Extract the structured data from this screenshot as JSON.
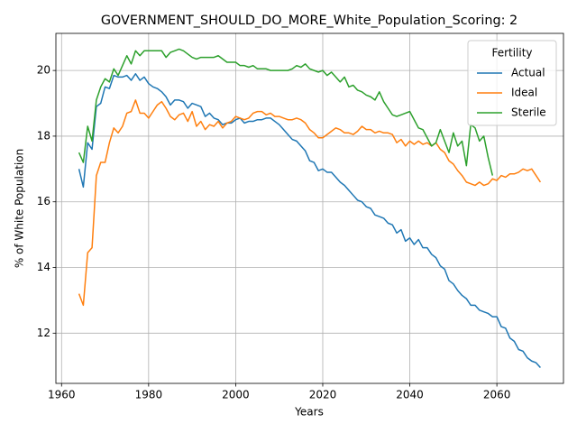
{
  "chart_data": {
    "type": "line",
    "title": "GOVERNMENT_SHOULD_DO_MORE_White_Population_Scoring: 2",
    "xlabel": "Years",
    "ylabel": "% of White Population",
    "legend_title": "Fertility",
    "legend": "upper right",
    "grid": true,
    "xlim": [
      1958.7,
      2075.3
    ],
    "ylim": [
      10.47,
      21.13
    ],
    "xticks": [
      1960,
      1980,
      2000,
      2020,
      2040,
      2060
    ],
    "yticks": [
      12,
      14,
      16,
      18,
      20
    ],
    "x": [
      1964,
      1965,
      1966,
      1967,
      1968,
      1969,
      1970,
      1971,
      1972,
      1973,
      1974,
      1975,
      1976,
      1977,
      1978,
      1979,
      1980,
      1981,
      1982,
      1983,
      1984,
      1985,
      1986,
      1987,
      1988,
      1989,
      1990,
      1991,
      1992,
      1993,
      1994,
      1995,
      1996,
      1997,
      1998,
      1999,
      2000,
      2001,
      2002,
      2003,
      2004,
      2005,
      2006,
      2007,
      2008,
      2009,
      2010,
      2011,
      2012,
      2013,
      2014,
      2015,
      2016,
      2017,
      2018,
      2019,
      2020,
      2021,
      2022,
      2023,
      2024,
      2025,
      2026,
      2027,
      2028,
      2029,
      2030,
      2031,
      2032,
      2033,
      2034,
      2035,
      2036,
      2037,
      2038,
      2039,
      2040,
      2041,
      2042,
      2043,
      2044,
      2045,
      2046,
      2047,
      2048,
      2049,
      2050,
      2051,
      2052,
      2053,
      2054,
      2055,
      2056,
      2057,
      2058,
      2059,
      2060,
      2061,
      2062,
      2063,
      2064,
      2065,
      2066,
      2067,
      2068,
      2069,
      2070
    ],
    "series": [
      {
        "name": "Actual",
        "color": "#1f77b4",
        "values": [
          17.0,
          16.45,
          17.8,
          17.6,
          18.9,
          19.0,
          19.5,
          19.45,
          19.85,
          19.8,
          19.8,
          19.85,
          19.7,
          19.9,
          19.7,
          19.8,
          19.6,
          19.5,
          19.45,
          19.35,
          19.2,
          18.95,
          19.1,
          19.1,
          19.05,
          18.85,
          19.0,
          18.95,
          18.9,
          18.6,
          18.7,
          18.55,
          18.5,
          18.35,
          18.4,
          18.4,
          18.5,
          18.55,
          18.4,
          18.45,
          18.45,
          18.5,
          18.5,
          18.55,
          18.55,
          18.45,
          18.35,
          18.2,
          18.05,
          17.9,
          17.85,
          17.7,
          17.55,
          17.25,
          17.2,
          16.95,
          17.0,
          16.9,
          16.9,
          16.75,
          16.6,
          16.5,
          16.35,
          16.2,
          16.05,
          16.0,
          15.85,
          15.8,
          15.6,
          15.55,
          15.5,
          15.35,
          15.3,
          15.05,
          15.15,
          14.8,
          14.9,
          14.7,
          14.85,
          14.6,
          14.6,
          14.4,
          14.3,
          14.05,
          13.95,
          13.6,
          13.5,
          13.3,
          13.15,
          13.05,
          12.85,
          12.85,
          12.7,
          12.65,
          12.6,
          12.5,
          12.5,
          12.2,
          12.15,
          11.85,
          11.75,
          11.5,
          11.45,
          11.25,
          11.15,
          11.1,
          10.95
        ]
      },
      {
        "name": "Ideal",
        "color": "#ff7f0e",
        "values": [
          13.2,
          12.85,
          14.45,
          14.6,
          16.8,
          17.2,
          17.2,
          17.8,
          18.25,
          18.1,
          18.3,
          18.7,
          18.75,
          19.1,
          18.7,
          18.7,
          18.55,
          18.75,
          18.95,
          19.05,
          18.85,
          18.6,
          18.5,
          18.65,
          18.7,
          18.45,
          18.75,
          18.3,
          18.45,
          18.2,
          18.35,
          18.3,
          18.45,
          18.25,
          18.4,
          18.45,
          18.6,
          18.55,
          18.5,
          18.55,
          18.7,
          18.75,
          18.75,
          18.65,
          18.7,
          18.6,
          18.6,
          18.55,
          18.5,
          18.5,
          18.55,
          18.5,
          18.4,
          18.2,
          18.1,
          17.95,
          17.95,
          18.05,
          18.15,
          18.25,
          18.2,
          18.1,
          18.1,
          18.05,
          18.15,
          18.3,
          18.2,
          18.2,
          18.1,
          18.15,
          18.1,
          18.1,
          18.05,
          17.8,
          17.9,
          17.7,
          17.85,
          17.75,
          17.85,
          17.75,
          17.8,
          17.7,
          17.8,
          17.6,
          17.5,
          17.25,
          17.15,
          16.95,
          16.8,
          16.6,
          16.55,
          16.5,
          16.6,
          16.5,
          16.55,
          16.7,
          16.65,
          16.8,
          16.75,
          16.85,
          16.85,
          16.9,
          17.0,
          16.95,
          17.0,
          16.8,
          16.6
        ]
      },
      {
        "name": "Sterile",
        "color": "#2ca02c",
        "values": [
          17.5,
          17.2,
          18.3,
          17.85,
          19.1,
          19.5,
          19.75,
          19.65,
          20.05,
          19.85,
          20.15,
          20.45,
          20.2,
          20.6,
          20.45,
          20.6,
          20.6,
          20.6,
          20.6,
          20.6,
          20.4,
          20.55,
          20.6,
          20.65,
          20.6,
          20.5,
          20.4,
          20.35,
          20.4,
          20.4,
          20.4,
          20.4,
          20.45,
          20.35,
          20.25,
          20.25,
          20.25,
          20.15,
          20.15,
          20.1,
          20.15,
          20.05,
          20.05,
          20.05,
          20.0,
          20.0,
          20.0,
          20.0,
          20.0,
          20.05,
          20.15,
          20.1,
          20.2,
          20.05,
          20.0,
          19.95,
          20.0,
          19.85,
          19.95,
          19.8,
          19.65,
          19.8,
          19.5,
          19.55,
          19.4,
          19.35,
          19.25,
          19.2,
          19.1,
          19.35,
          19.05,
          18.85,
          18.65,
          18.6,
          18.65,
          18.7,
          18.75,
          18.5,
          18.25,
          18.2,
          17.95,
          17.7,
          17.8,
          18.2,
          17.85,
          17.5,
          18.1,
          17.7,
          17.85,
          17.1,
          18.35,
          18.25,
          17.85,
          18.0,
          17.35,
          16.8,
          null,
          null,
          null,
          null,
          null,
          null,
          null,
          null,
          null,
          null,
          null
        ]
      }
    ]
  }
}
